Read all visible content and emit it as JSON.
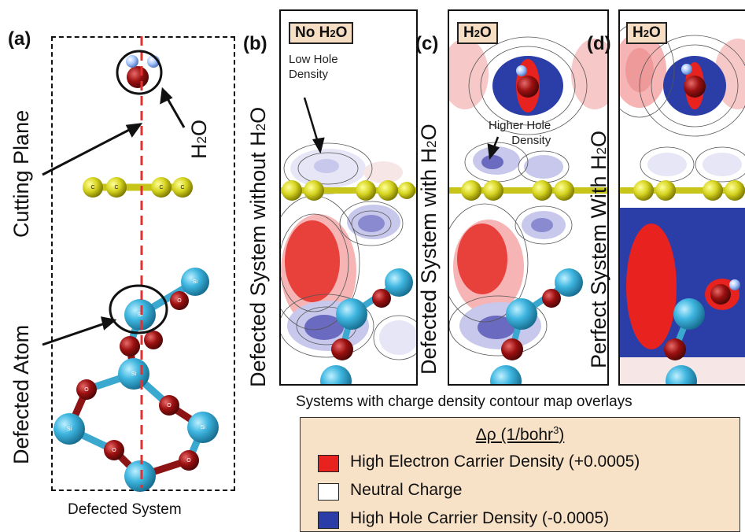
{
  "panel_a": {
    "label": "(a)",
    "cutting_plane": "Cutting Plane",
    "h2o": "H",
    "h2o_sub": "2",
    "h2o_end": "O",
    "defected_atom": "Defected Atom",
    "caption": "Defected System"
  },
  "panel_b": {
    "label": "(b)",
    "side": "Defected System without H",
    "side_sub": "2",
    "side_end": "O",
    "tag": "No H",
    "tag_sub": "2",
    "tag_end": "O",
    "note_line1": "Low Hole",
    "note_line2": "Density"
  },
  "panel_c": {
    "label": "(c)",
    "side": "Defected System with H",
    "side_sub": "2",
    "side_end": "O",
    "tag": "H",
    "tag_sub": "2",
    "tag_end": "O",
    "note_line1": "Higher Hole",
    "note_line2": "Density"
  },
  "panel_d": {
    "label": "(d)",
    "side": "Perfect System With H",
    "side_sub": "2",
    "side_end": "O",
    "tag": "H",
    "tag_sub": "2",
    "tag_end": "O"
  },
  "atom_labels": {
    "si": "Si",
    "o": "O",
    "c": "C"
  },
  "overlay_caption": "Systems with charge density contour map overlays",
  "legend": {
    "title": "Δρ (1/bohr",
    "title_sup": "3",
    "title_end": ")",
    "items": [
      {
        "label": "High Electron Carrier Density (+0.0005)",
        "color": "#e8221f"
      },
      {
        "label": "Neutral Charge",
        "color": "#ffffff"
      },
      {
        "label": "High Hole Carrier Density (-0.0005)",
        "color": "#2b3ea8"
      }
    ]
  }
}
